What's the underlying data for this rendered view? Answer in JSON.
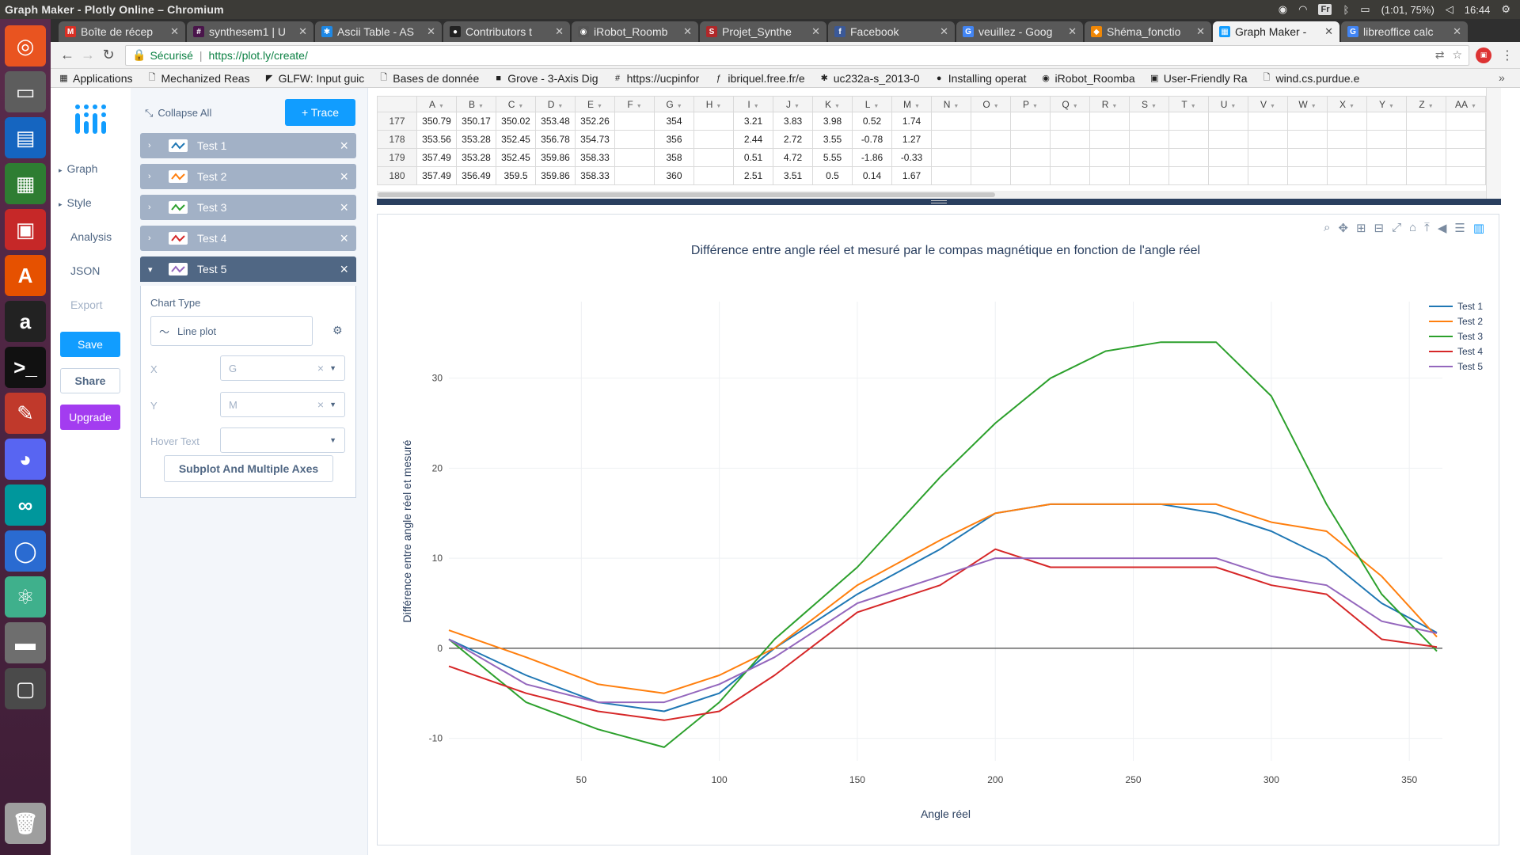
{
  "os": {
    "window_title": "Graph Maker - Plotly Online – Chromium",
    "keyboard_layout": "Fr",
    "battery": "(1:01, 75%)",
    "clock": "16:44",
    "launcher_icons": [
      "ubuntu-icon",
      "files-icon",
      "writer-icon",
      "calc-icon",
      "impress-icon",
      "software-center-icon",
      "amazon-icon",
      "terminal-icon",
      "settings-icon",
      "discord-icon",
      "arduino-icon",
      "chromium-icon",
      "atom-icon",
      "drive-icon",
      "workspace-icon",
      "trash-icon"
    ]
  },
  "browser": {
    "tabs": [
      {
        "label": "Boîte de récep",
        "icon": "gmail-icon",
        "color": "#d93025",
        "glyph": "M",
        "active": false
      },
      {
        "label": "synthesem1 | U",
        "icon": "slack-icon",
        "color": "#4a154b",
        "glyph": "#",
        "active": false
      },
      {
        "label": "Ascii Table - AS",
        "icon": "asterisk-icon",
        "color": "#1e88e5",
        "glyph": "✱",
        "active": false
      },
      {
        "label": "Contributors t",
        "icon": "github-icon",
        "color": "#222222",
        "glyph": "●",
        "active": false
      },
      {
        "label": "iRobot_Roomb",
        "icon": "irobot-icon",
        "color": "#555555",
        "glyph": "◉",
        "active": false
      },
      {
        "label": "Projet_Synthe",
        "icon": "sharelatex-icon",
        "color": "#b0282a",
        "glyph": "S",
        "active": false
      },
      {
        "label": "Facebook",
        "icon": "facebook-icon",
        "color": "#3b5998",
        "glyph": "f",
        "active": false
      },
      {
        "label": "veuillez - Goog",
        "icon": "google-icon",
        "color": "#4285f4",
        "glyph": "G",
        "active": false
      },
      {
        "label": "Shéma_fonctio",
        "icon": "drawio-icon",
        "color": "#f08705",
        "glyph": "◆",
        "active": false
      },
      {
        "label": "Graph Maker -",
        "icon": "plotly-icon",
        "color": "#119dff",
        "glyph": "▦",
        "active": true
      },
      {
        "label": "libreoffice calc",
        "icon": "google-icon",
        "color": "#4285f4",
        "glyph": "G",
        "active": false
      }
    ],
    "secure_label": "Sécurisé",
    "url": "https://plot.ly/create/",
    "bookmarks": [
      {
        "label": "Applications",
        "icon": "apps-grid-icon",
        "glyph": "▦"
      },
      {
        "label": "Mechanized Reas",
        "icon": "page-icon",
        "glyph": "🗋"
      },
      {
        "label": "GLFW: Input guic",
        "icon": "glfw-icon",
        "glyph": "◤"
      },
      {
        "label": "Bases de donnée",
        "icon": "page-icon",
        "glyph": "🗋"
      },
      {
        "label": "Grove - 3-Axis Dig",
        "icon": "book-icon",
        "glyph": "■"
      },
      {
        "label": "https://ucpinfor",
        "icon": "slack-icon",
        "glyph": "#"
      },
      {
        "label": "ibriquel.free.fr/e",
        "icon": "free-icon",
        "glyph": "ƒ"
      },
      {
        "label": "uc232a-s_2013-0",
        "icon": "asterisk-icon",
        "glyph": "✱"
      },
      {
        "label": "Installing operat",
        "icon": "raspberry-icon",
        "glyph": "●"
      },
      {
        "label": "iRobot_Roomba",
        "icon": "irobot-icon",
        "glyph": "◉"
      },
      {
        "label": "User-Friendly Ra",
        "icon": "bookmark-icon",
        "glyph": "▣"
      },
      {
        "label": "wind.cs.purdue.e",
        "icon": "page-icon",
        "glyph": "🗋"
      }
    ]
  },
  "nav": {
    "items": [
      {
        "label": "Graph",
        "caret": "▸"
      },
      {
        "label": "Style",
        "caret": "▸"
      },
      {
        "label": "Analysis",
        "caret": ""
      },
      {
        "label": "JSON",
        "caret": ""
      },
      {
        "label": "Export",
        "caret": ""
      }
    ],
    "save": "Save",
    "share": "Share",
    "upgrade": "Upgrade"
  },
  "panel": {
    "collapse_all": "Collapse All",
    "add_trace": "+ Trace",
    "traces": [
      {
        "label": "Test 1",
        "color": "#1f77b4",
        "active": false
      },
      {
        "label": "Test 2",
        "color": "#ff7f0e",
        "active": false
      },
      {
        "label": "Test 3",
        "color": "#2ca02c",
        "active": false
      },
      {
        "label": "Test 4",
        "color": "#d62728",
        "active": false
      },
      {
        "label": "Test 5",
        "color": "#9467bd",
        "active": true
      }
    ],
    "chart_type_label": "Chart Type",
    "chart_type_value": "Line plot",
    "x_label": "X",
    "x_value": "G",
    "y_label": "Y",
    "y_value": "M",
    "hover_label": "Hover Text",
    "hover_value": "",
    "subplot_button": "Subplot And Multiple Axes"
  },
  "grid": {
    "columns": [
      "A",
      "B",
      "C",
      "D",
      "E",
      "F",
      "G",
      "H",
      "I",
      "J",
      "K",
      "L",
      "M",
      "N",
      "O",
      "P",
      "Q",
      "R",
      "S",
      "T",
      "U",
      "V",
      "W",
      "X",
      "Y",
      "Z",
      "AA"
    ],
    "rows": [
      {
        "num": "177",
        "cells": [
          "350.79",
          "350.17",
          "350.02",
          "353.48",
          "352.26",
          "",
          "354",
          "",
          "3.21",
          "3.83",
          "3.98",
          "0.52",
          "1.74"
        ]
      },
      {
        "num": "178",
        "cells": [
          "353.56",
          "353.28",
          "352.45",
          "356.78",
          "354.73",
          "",
          "356",
          "",
          "2.44",
          "2.72",
          "3.55",
          "-0.78",
          "1.27"
        ]
      },
      {
        "num": "179",
        "cells": [
          "357.49",
          "353.28",
          "352.45",
          "359.86",
          "358.33",
          "",
          "358",
          "",
          "0.51",
          "4.72",
          "5.55",
          "-1.86",
          "-0.33"
        ]
      },
      {
        "num": "180",
        "cells": [
          "357.49",
          "356.49",
          "359.5",
          "359.86",
          "358.33",
          "",
          "360",
          "",
          "2.51",
          "3.51",
          "0.5",
          "0.14",
          "1.67"
        ]
      }
    ]
  },
  "modebar_icons": [
    "zoom-icon",
    "pan-icon",
    "zoom-in-icon",
    "zoom-out-icon",
    "autoscale-icon",
    "reset-axes-icon",
    "spike-lines-icon",
    "hover-closest-icon",
    "hover-compare-icon",
    "plotly-logo-icon"
  ],
  "chart_data": {
    "type": "line",
    "title": "Différence entre angle réel et mesuré par le compas magnétique en fonction de l'angle réel",
    "xlabel": "Angle réel",
    "ylabel": "Différence entre angle réel et mesuré",
    "xlim": [
      2,
      362
    ],
    "ylim": [
      -12.5,
      38.5
    ],
    "xticks": [
      50,
      100,
      150,
      200,
      250,
      300,
      350
    ],
    "yticks": [
      -10,
      0,
      10,
      20,
      30
    ],
    "grid": true,
    "legend_position": "top-right",
    "x": [
      2,
      30,
      56,
      80,
      100,
      120,
      150,
      180,
      200,
      220,
      240,
      260,
      280,
      300,
      320,
      340,
      360
    ],
    "series": [
      {
        "name": "Test 1",
        "color": "#1f77b4",
        "values": [
          1,
          -3,
          -6,
          -7,
          -5,
          0,
          6,
          11,
          15,
          16,
          16,
          16,
          15,
          13,
          10,
          5,
          1.74
        ]
      },
      {
        "name": "Test 2",
        "color": "#ff7f0e",
        "values": [
          2,
          -1,
          -4,
          -5,
          -3,
          0,
          7,
          12,
          15,
          16,
          16,
          16,
          16,
          14,
          13,
          8,
          1.27
        ]
      },
      {
        "name": "Test 3",
        "color": "#2ca02c",
        "values": [
          1,
          -6,
          -9,
          -11,
          -6,
          1,
          9,
          19,
          25,
          30,
          33,
          34,
          34,
          28,
          16,
          6,
          -0.33
        ]
      },
      {
        "name": "Test 4",
        "color": "#d62728",
        "values": [
          -2,
          -5,
          -7,
          -8,
          -7,
          -3,
          4,
          7,
          11,
          9,
          9,
          9,
          9,
          7,
          6,
          1,
          0.14
        ]
      },
      {
        "name": "Test 5",
        "color": "#9467bd",
        "values": [
          1,
          -4,
          -6,
          -6,
          -4,
          -1,
          5,
          8,
          10,
          10,
          10,
          10,
          10,
          8,
          7,
          3,
          1.67
        ]
      }
    ]
  }
}
